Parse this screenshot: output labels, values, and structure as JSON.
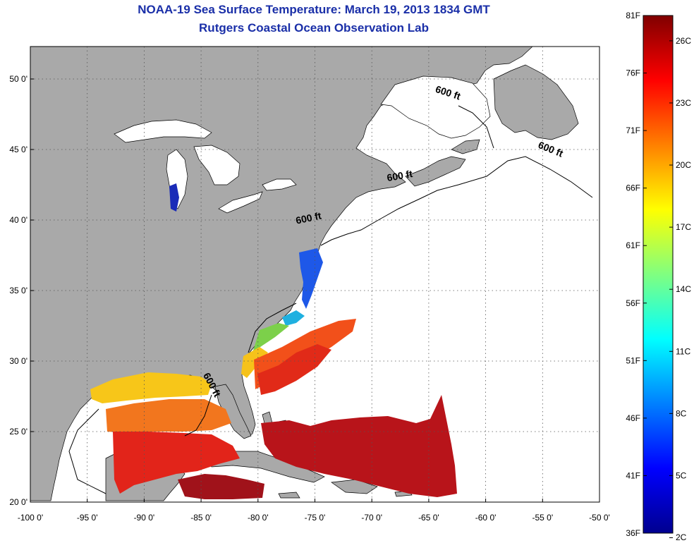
{
  "title": "NOAA-19 Sea Surface Temperature:  March 19, 2013 1834 GMT",
  "subtitle": "Rutgers Coastal Ocean Observation Lab",
  "map": {
    "lon_range": [
      -100,
      -50
    ],
    "lat_range": [
      20,
      52.3
    ],
    "lon_ticks": [
      "-100 0'",
      "-95 0'",
      "-90 0'",
      "-85 0'",
      "-80 0'",
      "-75 0'",
      "-70 0'",
      "-65 0'",
      "-60 0'",
      "-55 0'",
      "-50 0'"
    ],
    "lat_ticks": [
      "20 0'",
      "25 0'",
      "30 0'",
      "35 0'",
      "40 0'",
      "45 0'",
      "50 0'"
    ],
    "grid": "dotted",
    "land_color": "#a9a9a9",
    "ocean_color": "#ffffff",
    "contour_label": "600 ft",
    "contour_labels": [
      {
        "text": "600 ft",
        "lon": -75.5,
        "lat": 39.9
      },
      {
        "text": "600 ft",
        "lon": -67.5,
        "lat": 42.9
      },
      {
        "text": "600 ft",
        "lon": -63.4,
        "lat": 48.8
      },
      {
        "text": "600 ft",
        "lon": -54.4,
        "lat": 44.8
      },
      {
        "text": "600 ft",
        "lon": -84.3,
        "lat": 28.2
      }
    ]
  },
  "colorbar": {
    "f_labels": [
      "81F",
      "76F",
      "71F",
      "66F",
      "61F",
      "56F",
      "51F",
      "46F",
      "41F",
      "36F"
    ],
    "c_labels": [
      "26C",
      "23C",
      "20C",
      "17C",
      "14C",
      "11C",
      "8C",
      "5C",
      "2C"
    ],
    "colors": [
      "#00008f",
      "#0000ff",
      "#0080ff",
      "#00ffff",
      "#80ff80",
      "#ffff00",
      "#ff8000",
      "#ff0000",
      "#800000"
    ]
  }
}
